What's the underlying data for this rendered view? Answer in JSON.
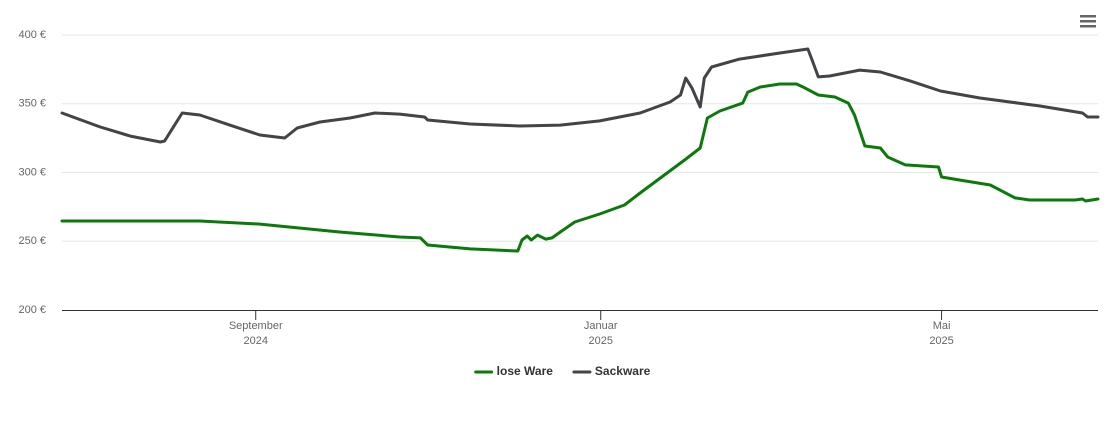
{
  "chart_data": {
    "type": "line",
    "xlim": [
      2024.48,
      2025.48
    ],
    "xticks": [
      {
        "value": 2024.667,
        "label": "September 2024"
      },
      {
        "value": 2025.0,
        "label": "Januar 2025"
      },
      {
        "value": 2025.329,
        "label": "Mai 2025"
      }
    ],
    "ylim": [
      200,
      400
    ],
    "yticks": [
      {
        "value": 200,
        "label": "200 €"
      },
      {
        "value": 250,
        "label": "250 €"
      },
      {
        "value": 300,
        "label": "300 €"
      },
      {
        "value": 350,
        "label": "350 €"
      },
      {
        "value": 400,
        "label": "400 €"
      }
    ],
    "grid": true,
    "legend": "bottom",
    "series": [
      {
        "name": "lose Ware",
        "color": "#0b7a0b",
        "x": [
          2024.48,
          2024.613,
          2024.671,
          2024.748,
          2024.806,
          2024.826,
          2024.833,
          2024.874,
          2024.92,
          2024.924,
          2024.929,
          2024.933,
          2024.939,
          2024.947,
          2024.953,
          2024.961,
          2024.975,
          2024.999,
          2025.023,
          2025.038,
          2025.081,
          2025.096,
          2025.103,
          2025.115,
          2025.137,
          2025.142,
          2025.154,
          2025.173,
          2025.189,
          2025.197,
          2025.21,
          2025.226,
          2025.239,
          2025.245,
          2025.255,
          2025.27,
          2025.277,
          2025.294,
          2025.326,
          2025.329,
          2025.347,
          2025.376,
          2025.4,
          2025.414,
          2025.458,
          2025.465,
          2025.468,
          2025.48
        ],
        "values": [
          264.7,
          264.7,
          262.5,
          256.7,
          253.1,
          252.4,
          247.3,
          244.4,
          242.9,
          250.9,
          253.8,
          250.9,
          254.5,
          251.6,
          252.4,
          256.7,
          264.0,
          269.8,
          276.4,
          285.1,
          309.1,
          317.8,
          339.6,
          344.7,
          350.5,
          358.5,
          362.2,
          364.4,
          364.4,
          361.5,
          356.4,
          354.9,
          350.5,
          341.8,
          319.3,
          317.8,
          311.3,
          305.5,
          304.0,
          296.7,
          294.5,
          290.9,
          281.5,
          280.0,
          280.0,
          280.7,
          279.3,
          280.7
        ]
      },
      {
        "name": "Sackware",
        "color": "#434348",
        "x": [
          2024.48,
          2024.517,
          2024.546,
          2024.575,
          2024.579,
          2024.596,
          2024.613,
          2024.642,
          2024.671,
          2024.695,
          2024.707,
          2024.729,
          2024.758,
          2024.782,
          2024.806,
          2024.83,
          2024.833,
          2024.874,
          2024.922,
          2024.961,
          2024.999,
          2025.038,
          2025.067,
          2025.077,
          2025.082,
          2025.088,
          2025.096,
          2025.1,
          2025.107,
          2025.134,
          2025.173,
          2025.2,
          2025.204,
          2025.21,
          2025.221,
          2025.25,
          2025.27,
          2025.299,
          2025.328,
          2025.366,
          2025.424,
          2025.465,
          2025.47,
          2025.48
        ],
        "values": [
          343.3,
          333.1,
          326.5,
          322.2,
          322.9,
          343.3,
          341.8,
          334.5,
          327.3,
          325.1,
          332.4,
          336.7,
          339.6,
          343.3,
          342.5,
          340.4,
          338.2,
          335.3,
          333.8,
          334.5,
          337.5,
          343.3,
          351.3,
          356.4,
          368.7,
          361.5,
          347.6,
          368.7,
          376.7,
          382.5,
          386.9,
          389.8,
          381.8,
          369.5,
          370.2,
          374.5,
          373.1,
          366.5,
          359.3,
          354.2,
          348.4,
          343.3,
          340.4,
          340.4
        ]
      }
    ]
  }
}
